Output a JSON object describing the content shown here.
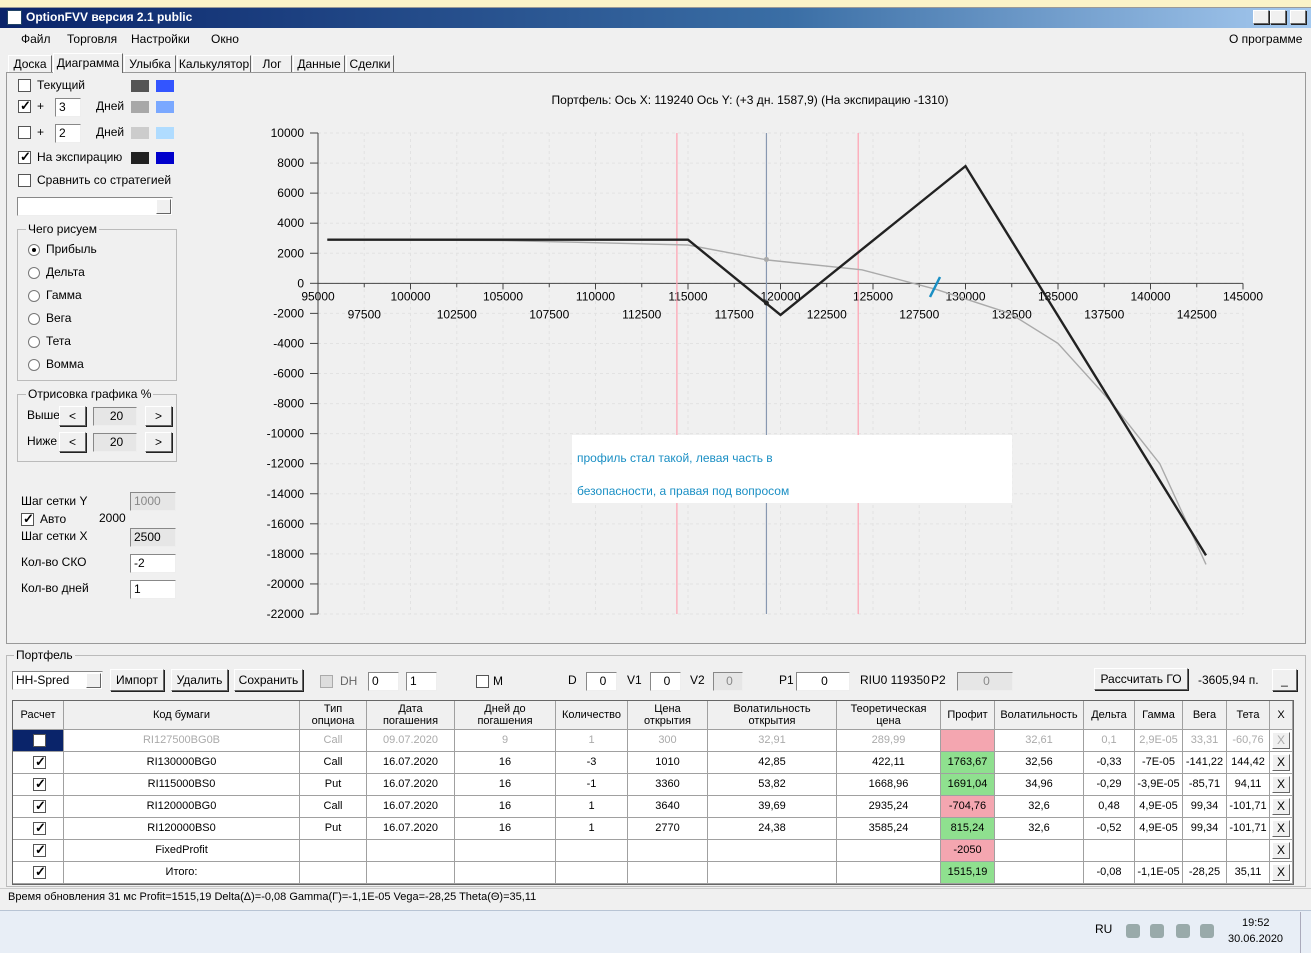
{
  "window": {
    "title": "OptionFVV версия 2.1 public"
  },
  "menu": {
    "items": [
      "Файл",
      "Торговля",
      "Настройки",
      "Окно"
    ],
    "about": "О программе"
  },
  "tabs": {
    "items": [
      "Доска",
      "Диаграмма",
      "Улыбка",
      "Калькулятор",
      "Лог",
      "Данные",
      "Сделки"
    ],
    "active": 1
  },
  "left": {
    "series_rows": [
      {
        "label": "Текущий",
        "checked": false,
        "colors": [
          "#555555",
          "#3355ff"
        ]
      },
      {
        "plus": "+",
        "days": "3",
        "unit": "Дней",
        "checked": true,
        "colors": [
          "#a8a8a8",
          "#7aa8ff"
        ]
      },
      {
        "plus": "+",
        "days": "2",
        "unit": "Дней",
        "checked": false,
        "colors": [
          "#cccccc",
          "#b0dcff"
        ]
      },
      {
        "label": "На экспирацию",
        "checked": true,
        "colors": [
          "#222222",
          "#0000cc"
        ]
      }
    ],
    "compare": {
      "label": "Сравнить со стратегией",
      "checked": false
    },
    "draw_group": {
      "title": "Чего рисуем",
      "options": [
        "Прибыль",
        "Дельта",
        "Гамма",
        "Вега",
        "Тета",
        "Вомма"
      ],
      "selected": 0
    },
    "render_group": {
      "title": "Отрисовка графика %",
      "rows": [
        {
          "label": "Выше",
          "value": "20"
        },
        {
          "label": "Ниже",
          "value": "20"
        }
      ],
      "dec": "<",
      "inc": ">"
    },
    "grid_y": {
      "label": "Шаг сетки Y",
      "value": "1000",
      "disabled": true
    },
    "auto": {
      "label": "Авто",
      "checked": true,
      "value": "2000"
    },
    "fields": [
      {
        "label": "Шаг сетки X",
        "value": "2500",
        "disabled": true
      },
      {
        "label": "Кол-во СКО",
        "value": "-2"
      },
      {
        "label": "Кол-во дней",
        "value": "1"
      }
    ]
  },
  "chart_data": {
    "type": "line",
    "title": "Портфель: Ось X: 119240 Ось Y:  (+3 дн. 1587,9)  (На экспирацию -1310)",
    "xlim": [
      95000,
      145000
    ],
    "ylim": [
      -22000,
      10000
    ],
    "xticks": [
      95000,
      97500,
      100000,
      102500,
      105000,
      107500,
      110000,
      112500,
      115000,
      117500,
      120000,
      122500,
      125000,
      127500,
      130000,
      132500,
      135000,
      137500,
      140000,
      142500,
      145000
    ],
    "yticks": [
      -22000,
      -20000,
      -18000,
      -16000,
      -14000,
      -12000,
      -10000,
      -8000,
      -6000,
      -4000,
      -2000,
      0,
      2000,
      4000,
      6000,
      8000,
      10000
    ],
    "grid": true,
    "series": [
      {
        "color": "#aaaaaa",
        "x": [
          95500,
          105000,
          115000,
          119300,
          124400,
          128400,
          132400,
          135000,
          137800,
          140500,
          143000
        ],
        "values": [
          2900,
          2850,
          2550,
          1550,
          900,
          -400,
          -2000,
          -4000,
          -7800,
          -12000,
          -18700
        ]
      },
      {
        "color": "#222222",
        "x": [
          95500,
          115000,
          120000,
          130000,
          143000
        ],
        "values": [
          2900,
          2900,
          -2100,
          7800,
          -18100
        ]
      }
    ],
    "markers": [
      {
        "x": 114400,
        "color": "#ffa0b0"
      },
      {
        "x": 124200,
        "color": "#ffa0b0"
      },
      {
        "x": 119240,
        "color": "#8898b0"
      }
    ],
    "points": [
      {
        "x": 119240,
        "y": -1310,
        "color": "#222222"
      },
      {
        "x": 119240,
        "y": 1588,
        "color": "#aaaaaa"
      }
    ],
    "annotation": [
      "профиль стал такой, левая часть в",
      "безопасности, а правая под вопросом"
    ]
  },
  "portfolio": {
    "title": "Портфель",
    "strategy": "HH-Spred",
    "buttons": [
      "Импорт",
      "Удалить",
      "Сохранить"
    ],
    "dh": {
      "label": "DH",
      "values": [
        "0",
        "1"
      ]
    },
    "m": "M",
    "fields": [
      {
        "label": "D",
        "value": "0"
      },
      {
        "label": "V1",
        "value": "0"
      },
      {
        "label": "V2",
        "value": "0",
        "disabled": true
      },
      {
        "label": "P1",
        "value": "0"
      }
    ],
    "underlying": "RIU0 119350",
    "p2": {
      "label": "P2",
      "value": "0"
    },
    "calc": "Рассчитать ГО",
    "margin": "-3605,94 п.",
    "minimize": "_"
  },
  "table": {
    "columns": [
      [
        "Расчет"
      ],
      [
        "Код бумаги"
      ],
      [
        "Тип",
        "опциона"
      ],
      [
        "Дата",
        "погашения"
      ],
      [
        "Дней до",
        "погашения"
      ],
      [
        "Количество"
      ],
      [
        "Цена",
        "открытия"
      ],
      [
        "Волатильность",
        "открытия"
      ],
      [
        "Теоретическая",
        "цена"
      ],
      [
        "Профит"
      ],
      [
        "Волатильность"
      ],
      [
        "Дельта"
      ],
      [
        "Гамма"
      ],
      [
        "Вега"
      ],
      [
        "Тета"
      ],
      [
        "X"
      ]
    ],
    "remove": "X",
    "rows": [
      {
        "checked": false,
        "disabled": true,
        "profit_color": "#f4a6b0",
        "cells": [
          "RI127500BG0B",
          "Call",
          "09.07.2020",
          "9",
          "1",
          "300",
          "32,91",
          "289,99",
          null,
          "32,61",
          "0,1",
          "2,9E-05",
          "33,31",
          "-60,76"
        ]
      },
      {
        "checked": true,
        "profit_color": "#8fe08f",
        "cells": [
          "RI130000BG0",
          "Call",
          "16.07.2020",
          "16",
          "-3",
          "1010",
          "42,85",
          "422,11",
          "1763,67",
          "32,56",
          "-0,33",
          "-7E-05",
          "-141,22",
          "144,42"
        ]
      },
      {
        "checked": true,
        "profit_color": "#8fe08f",
        "cells": [
          "RI115000BS0",
          "Put",
          "16.07.2020",
          "16",
          "-1",
          "3360",
          "53,82",
          "1668,96",
          "1691,04",
          "34,96",
          "-0,29",
          "-3,9E-05",
          "-85,71",
          "94,11"
        ]
      },
      {
        "checked": true,
        "profit_color": "#f4a6b0",
        "cells": [
          "RI120000BG0",
          "Call",
          "16.07.2020",
          "16",
          "1",
          "3640",
          "39,69",
          "2935,24",
          "-704,76",
          "32,6",
          "0,48",
          "4,9E-05",
          "99,34",
          "-101,71"
        ]
      },
      {
        "checked": true,
        "profit_color": "#8fe08f",
        "cells": [
          "RI120000BS0",
          "Put",
          "16.07.2020",
          "16",
          "1",
          "2770",
          "24,38",
          "3585,24",
          "815,24",
          "32,6",
          "-0,52",
          "4,9E-05",
          "99,34",
          "-101,71"
        ]
      },
      {
        "checked": true,
        "profit_color": "#f4a6b0",
        "cells": [
          "FixedProfit",
          null,
          null,
          null,
          null,
          null,
          null,
          null,
          "-2050",
          null,
          null,
          null,
          null,
          null
        ]
      },
      {
        "checked": true,
        "profit_color": "#8fe08f",
        "cells": [
          "Итого:",
          null,
          null,
          null,
          null,
          null,
          null,
          null,
          "1515,19",
          null,
          "-0,08",
          "-1,1E-05",
          "-28,25",
          "35,11"
        ]
      }
    ]
  },
  "status": "Время обновления 31 мс  Profit=1515,19 Delta(Δ)=-0,08 Gamma(Γ)=-1,1E-05 Vega=-28,25 Theta(Θ)=35,11",
  "taskbar": {
    "lang": "RU",
    "time": "19:52",
    "date": "30.06.2020"
  }
}
